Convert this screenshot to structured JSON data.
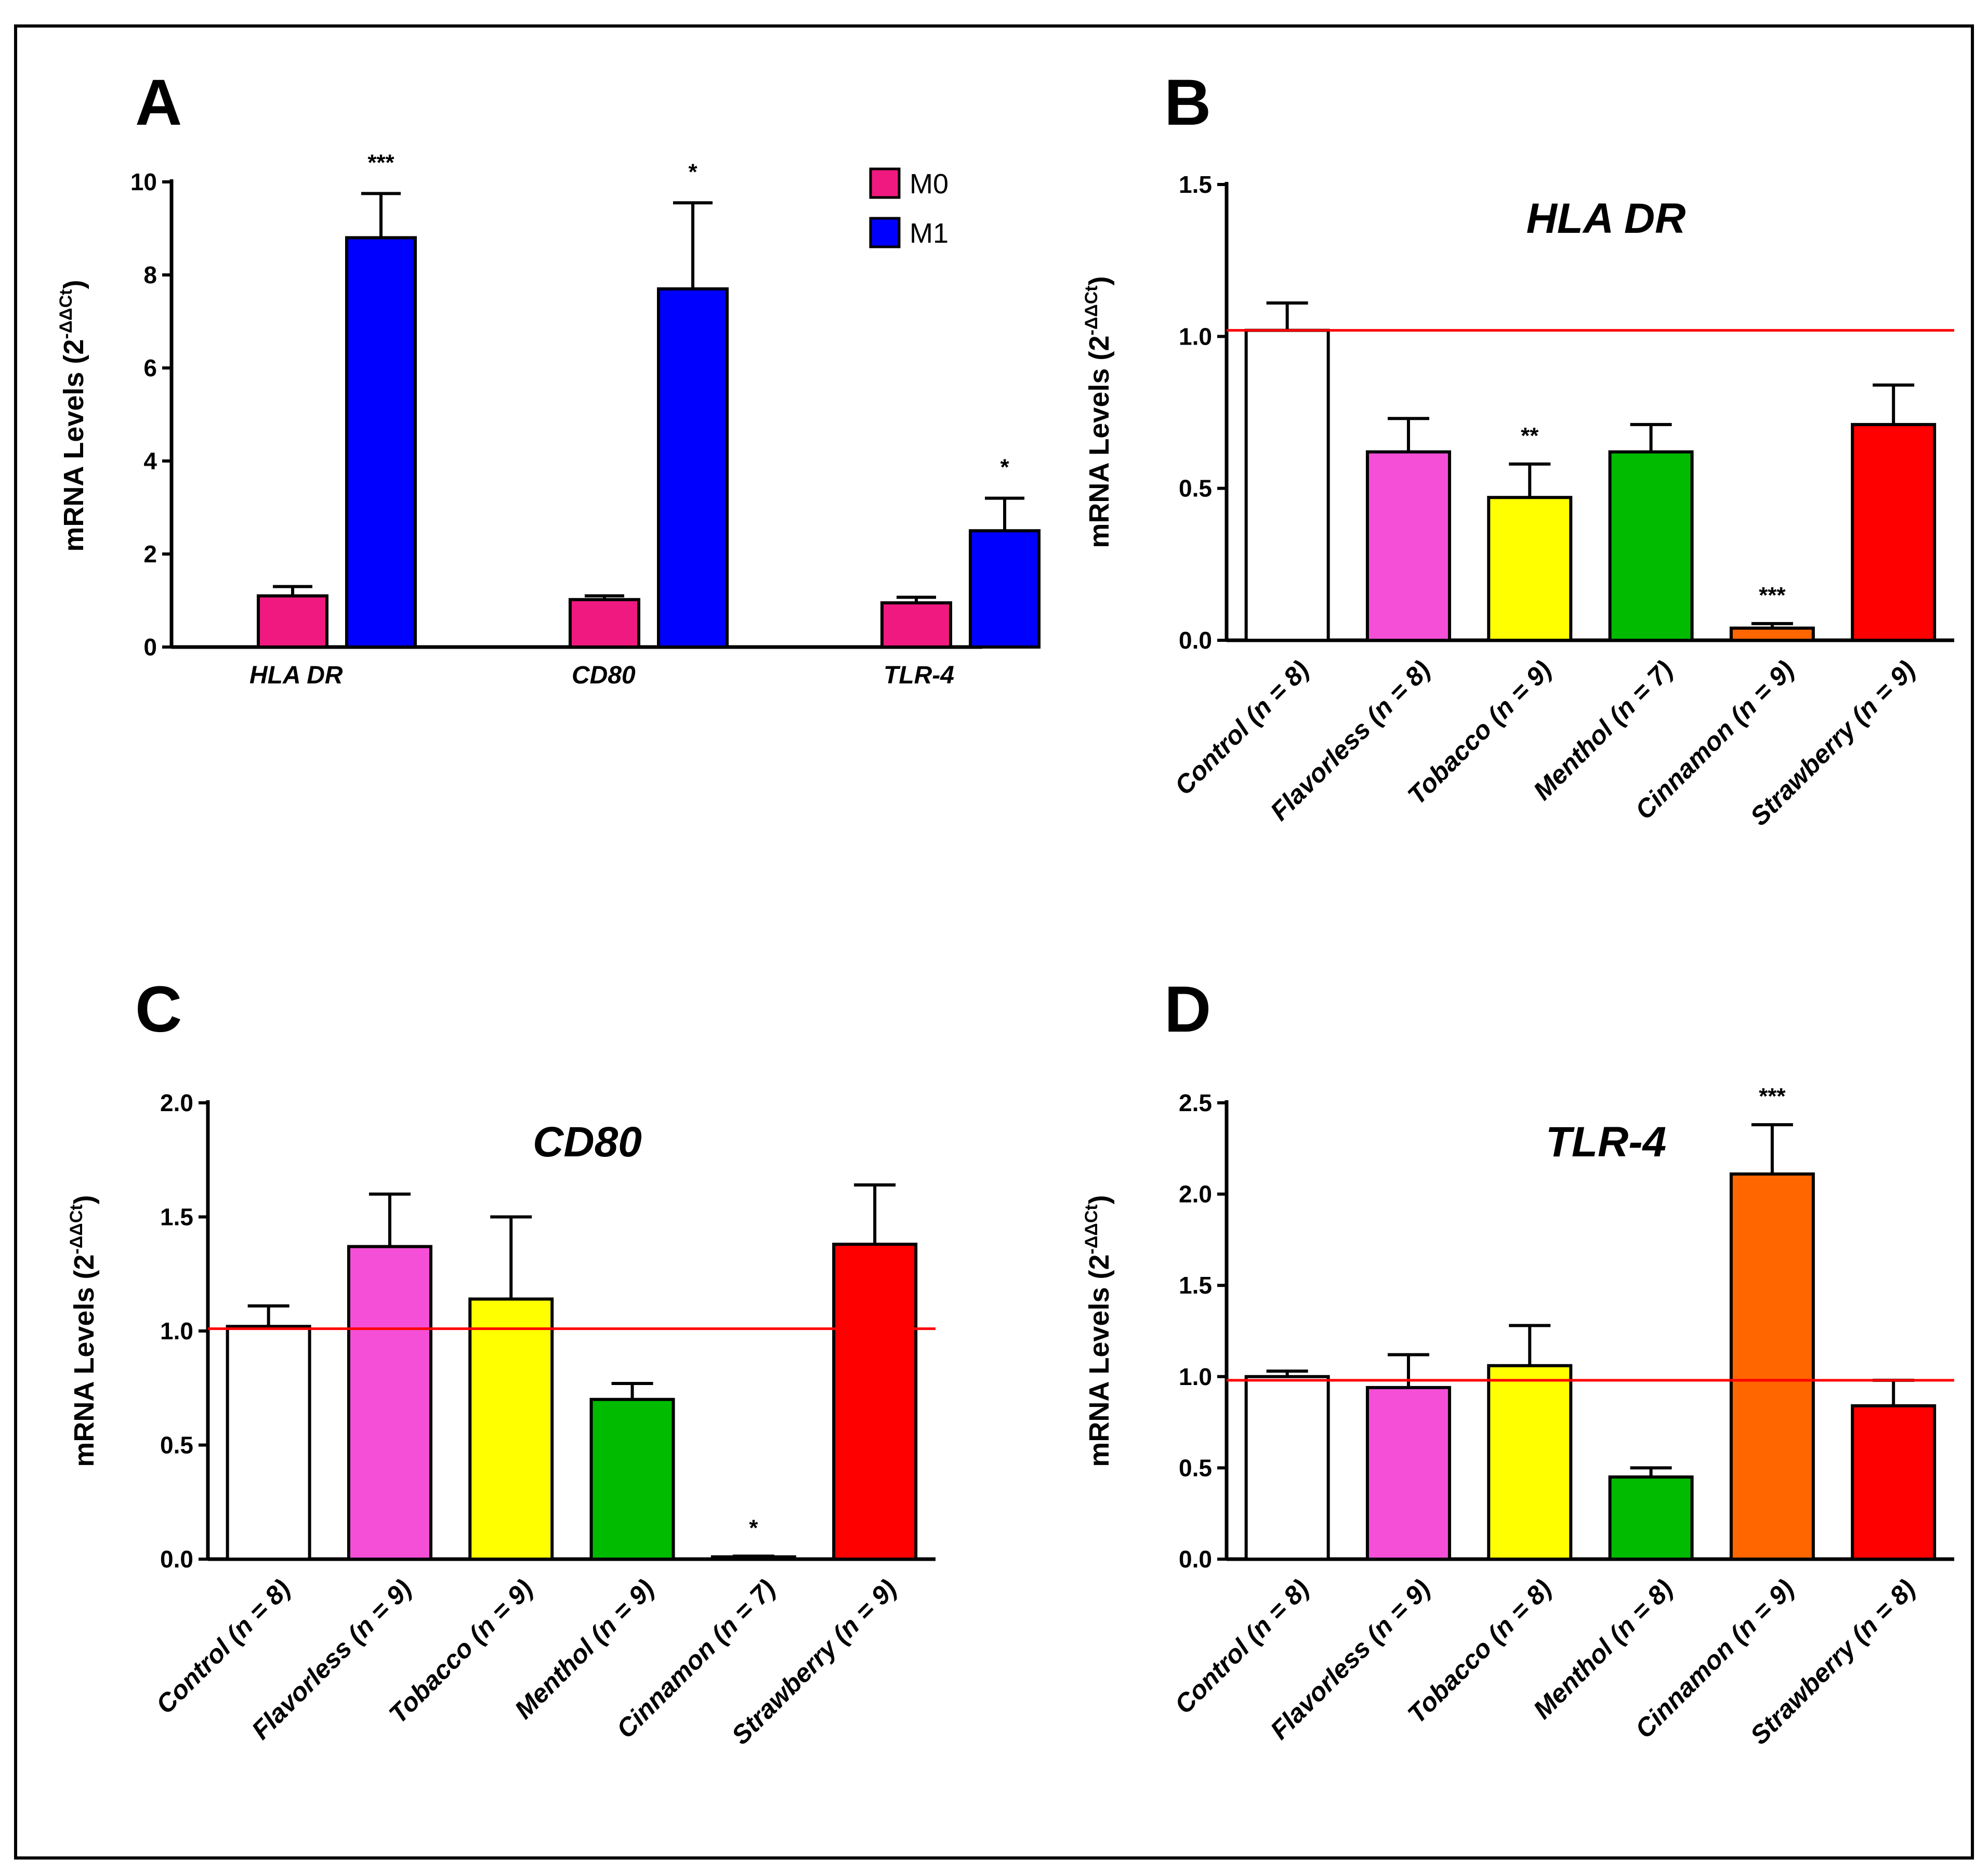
{
  "chart_data": [
    {
      "panel": "A",
      "type": "bar",
      "title": "",
      "xlabel": "",
      "ylabel": "mRNA Levels (2",
      "ylabel_sup": "-ΔΔCt",
      "ylabel_close": ")",
      "ylim": [
        0,
        10
      ],
      "yticks": [
        0,
        2,
        4,
        6,
        8,
        10
      ],
      "categories": [
        "HLA DR",
        "CD80",
        "TLR-4"
      ],
      "series": [
        {
          "name": "M0",
          "color": "#f0197f",
          "values": [
            1.1,
            1.02,
            0.95
          ],
          "errors": [
            0.2,
            0.08,
            0.12
          ]
        },
        {
          "name": "M1",
          "color": "#0000ff",
          "values": [
            8.8,
            7.7,
            2.5
          ],
          "errors": [
            0.95,
            1.85,
            0.7
          ]
        }
      ],
      "significance": [
        "***",
        "*",
        "*"
      ],
      "legend": "top-right"
    },
    {
      "panel": "B",
      "type": "bar",
      "title": "HLA DR",
      "xlabel": "",
      "ylabel": "mRNA Levels (2",
      "ylabel_sup": "-ΔΔCt",
      "ylabel_close": ")",
      "ylim": [
        0,
        1.5
      ],
      "yticks": [
        "0.0",
        "0.5",
        "1.0",
        "1.5"
      ],
      "reference_line": 1.02,
      "categories": [
        "Control (n = 8)",
        "Flavorless (n = 8)",
        "Tobacco (n = 9)",
        "Menthol (n = 7)",
        "Cinnamon (n = 9)",
        "Strawberry (n = 9)"
      ],
      "values": [
        1.02,
        0.62,
        0.47,
        0.62,
        0.04,
        0.71
      ],
      "errors": [
        0.09,
        0.11,
        0.11,
        0.09,
        0.015,
        0.13
      ],
      "colors": [
        "#ffffff",
        "#f54fd8",
        "#ffff00",
        "#00bb00",
        "#ff6600",
        "#ff0000"
      ],
      "significance": [
        "",
        "",
        "**",
        "",
        "***",
        ""
      ]
    },
    {
      "panel": "C",
      "type": "bar",
      "title": "CD80",
      "xlabel": "",
      "ylabel": "mRNA Levels (2",
      "ylabel_sup": "-ΔΔCt",
      "ylabel_close": ")",
      "ylim": [
        0,
        2.0
      ],
      "yticks": [
        "0.0",
        "0.5",
        "1.0",
        "1.5",
        "2.0"
      ],
      "reference_line": 1.01,
      "categories": [
        "Control (n = 8)",
        "Flavorless (n = 9)",
        "Tobacco (n = 9)",
        "Menthol (n = 9)",
        "Cinnamon (n = 7)",
        "Strawberry (n = 9)"
      ],
      "values": [
        1.02,
        1.37,
        1.14,
        0.7,
        0.01,
        1.38
      ],
      "errors": [
        0.09,
        0.23,
        0.36,
        0.07,
        0.003,
        0.26
      ],
      "colors": [
        "#ffffff",
        "#f54fd8",
        "#ffff00",
        "#00bb00",
        "#ff6600",
        "#ff0000"
      ],
      "significance": [
        "",
        "",
        "",
        "",
        "*",
        ""
      ]
    },
    {
      "panel": "D",
      "type": "bar",
      "title": "TLR-4",
      "xlabel": "",
      "ylabel": "mRNA Levels (2",
      "ylabel_sup": "-ΔΔCt",
      "ylabel_close": ")",
      "ylim": [
        0,
        2.5
      ],
      "yticks": [
        "0.0",
        "0.5",
        "1.0",
        "1.5",
        "2.0",
        "2.5"
      ],
      "reference_line": 0.98,
      "categories": [
        "Control (n = 8)",
        "Flavorless (n = 9)",
        "Tobacco (n = 8)",
        "Menthol (n = 8)",
        "Cinnamon (n = 9)",
        "Strawberry (n = 8)"
      ],
      "values": [
        1.0,
        0.94,
        1.06,
        0.45,
        2.11,
        0.84
      ],
      "errors": [
        0.03,
        0.18,
        0.22,
        0.05,
        0.27,
        0.14
      ],
      "colors": [
        "#ffffff",
        "#f54fd8",
        "#ffff00",
        "#00bb00",
        "#ff6600",
        "#ff0000"
      ],
      "significance": [
        "",
        "",
        "",
        "",
        "***",
        ""
      ]
    }
  ],
  "reference_line_color": "#ff0000"
}
